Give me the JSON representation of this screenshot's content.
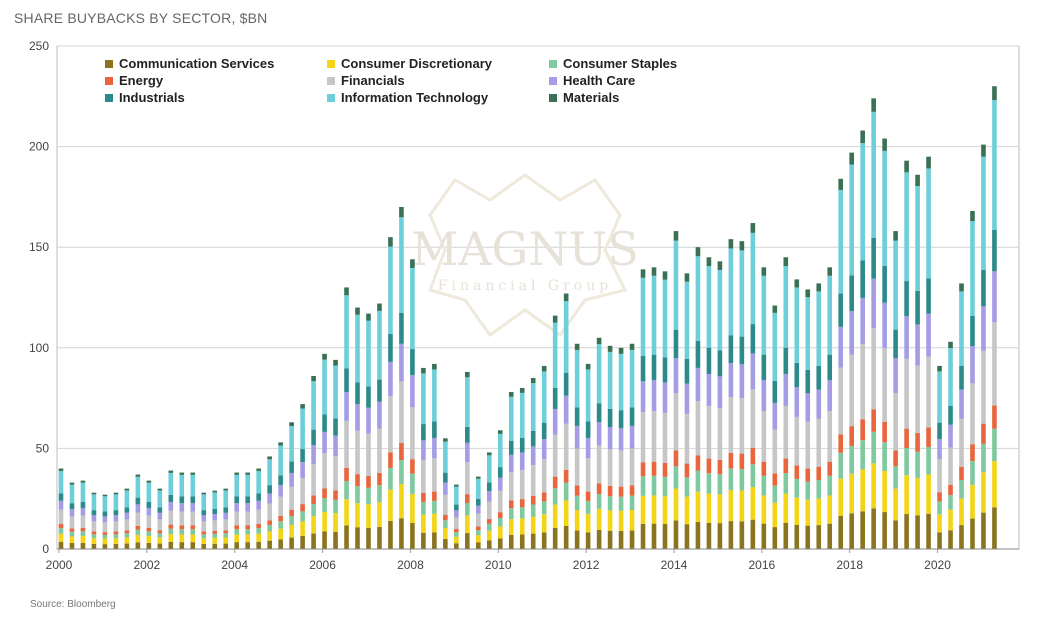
{
  "title": "SHARE BUYBACKS BY SECTOR, $BN",
  "source": "Source: Bloomberg",
  "watermark": {
    "main": "MAGNUS",
    "sub": "Financial Group"
  },
  "chart_data": {
    "type": "bar",
    "stacked": true,
    "ylim": [
      0,
      250
    ],
    "yticks": [
      "0",
      "50",
      "100",
      "150",
      "200",
      "250"
    ],
    "xticks": [
      "2000",
      "2002",
      "2004",
      "2006",
      "2008",
      "2010",
      "2012",
      "2014",
      "2016",
      "2018",
      "2020"
    ],
    "grid": true,
    "legend_position": "top-left",
    "x_start_quarter": "2000 Q1",
    "totals": [
      40,
      33,
      34,
      28,
      27,
      28,
      30,
      37,
      34,
      30,
      39,
      38,
      38,
      28,
      29,
      30,
      38,
      38,
      40,
      46,
      53,
      63,
      72,
      86,
      97,
      94,
      130,
      120,
      117,
      122,
      155,
      170,
      144,
      90,
      92,
      55,
      32,
      88,
      36,
      48,
      59,
      78,
      80,
      85,
      91,
      116,
      127,
      102,
      92,
      105,
      101,
      100,
      102,
      139,
      140,
      138,
      158,
      137,
      150,
      145,
      143,
      154,
      153,
      162,
      140,
      121,
      145,
      134,
      129,
      132,
      140,
      184,
      197,
      208,
      224,
      204,
      158,
      193,
      186,
      195,
      91,
      103,
      132,
      168,
      201,
      230
    ],
    "series": [
      {
        "name": "Communication Services",
        "color": "#8a7420",
        "share": 0.09
      },
      {
        "name": "Consumer Discretionary",
        "color": "#f4d416",
        "share": 0.1
      },
      {
        "name": "Consumer Staples",
        "color": "#7fc9a0",
        "share": 0.07
      },
      {
        "name": "Energy",
        "color": "#e8653d",
        "share": 0.05
      },
      {
        "name": "Financials",
        "color": "#c6c6c6",
        "share": 0.18
      },
      {
        "name": "Health Care",
        "color": "#a59ce6",
        "share": 0.11
      },
      {
        "name": "Industrials",
        "color": "#2d8a8a",
        "share": 0.09
      },
      {
        "name": "Information Technology",
        "color": "#6ccfd9",
        "share": 0.28
      },
      {
        "name": "Materials",
        "color": "#3a7054",
        "share": 0.03
      }
    ]
  }
}
